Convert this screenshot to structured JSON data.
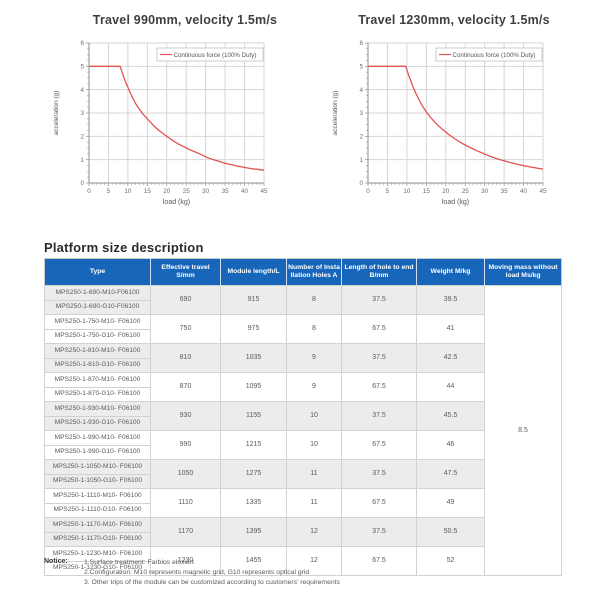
{
  "chart_data": [
    {
      "type": "line",
      "title": "Travel 990mm, velocity 1.5m/s",
      "xlabel": "load (kg)",
      "ylabel": "acceleration (g)",
      "xlim": [
        0,
        45
      ],
      "ylim": [
        0,
        6
      ],
      "xtick_step": 5,
      "ytick_step": 1,
      "x_minor_step": 1,
      "y_minor_step": 0.25,
      "grid": true,
      "legend": {
        "label": "Continuous force (100% Duty)",
        "position": "top-right"
      },
      "line_color": "#e25353",
      "series": [
        {
          "name": "Continuous force (100% Duty)",
          "points": [
            [
              0,
              5
            ],
            [
              8,
              5
            ],
            [
              8.5,
              4.75
            ],
            [
              9,
              4.5
            ],
            [
              9.5,
              4.3
            ],
            [
              10,
              4.1
            ],
            [
              11,
              3.72
            ],
            [
              12,
              3.4
            ],
            [
              13,
              3.15
            ],
            [
              14,
              2.93
            ],
            [
              15,
              2.75
            ],
            [
              16,
              2.57
            ],
            [
              17,
              2.4
            ],
            [
              18,
              2.25
            ],
            [
              19,
              2.12
            ],
            [
              20,
              2.0
            ],
            [
              21,
              1.88
            ],
            [
              22,
              1.77
            ],
            [
              23,
              1.67
            ],
            [
              24,
              1.58
            ],
            [
              25,
              1.5
            ],
            [
              26,
              1.42
            ],
            [
              27,
              1.35
            ],
            [
              28,
              1.28
            ],
            [
              29,
              1.21
            ],
            [
              30,
              1.12
            ],
            [
              31,
              1.06
            ],
            [
              32,
              1.0
            ],
            [
              33,
              0.95
            ],
            [
              34,
              0.9
            ],
            [
              35,
              0.85
            ],
            [
              36,
              0.81
            ],
            [
              37,
              0.77
            ],
            [
              38,
              0.73
            ],
            [
              39,
              0.7
            ],
            [
              40,
              0.67
            ],
            [
              41,
              0.64
            ],
            [
              42,
              0.61
            ],
            [
              43,
              0.59
            ],
            [
              44,
              0.57
            ],
            [
              45,
              0.55
            ]
          ]
        }
      ]
    },
    {
      "type": "line",
      "title": "Travel 1230mm, velocity 1.5m/s",
      "xlabel": "load (kg)",
      "ylabel": "acceleration (g)",
      "xlim": [
        0,
        45
      ],
      "ylim": [
        0,
        6
      ],
      "xtick_step": 5,
      "ytick_step": 1,
      "x_minor_step": 1,
      "y_minor_step": 0.25,
      "grid": true,
      "legend": {
        "label": "Continuous force (100% Duty)",
        "position": "top-right"
      },
      "line_color": "#e25353",
      "series": [
        {
          "name": "Continuous force (100% Duty)",
          "points": [
            [
              0,
              5
            ],
            [
              9.7,
              5
            ],
            [
              10,
              4.85
            ],
            [
              10.5,
              4.6
            ],
            [
              11,
              4.38
            ],
            [
              11.5,
              4.15
            ],
            [
              12,
              3.95
            ],
            [
              13,
              3.6
            ],
            [
              14,
              3.3
            ],
            [
              15,
              3.05
            ],
            [
              16,
              2.83
            ],
            [
              17,
              2.64
            ],
            [
              18,
              2.47
            ],
            [
              19,
              2.32
            ],
            [
              20,
              2.18
            ],
            [
              21,
              2.05
            ],
            [
              22,
              1.93
            ],
            [
              23,
              1.82
            ],
            [
              24,
              1.72
            ],
            [
              25,
              1.63
            ],
            [
              26,
              1.54
            ],
            [
              27,
              1.46
            ],
            [
              28,
              1.38
            ],
            [
              29,
              1.31
            ],
            [
              30,
              1.24
            ],
            [
              31,
              1.17
            ],
            [
              32,
              1.11
            ],
            [
              33,
              1.05
            ],
            [
              34,
              1.0
            ],
            [
              35,
              0.95
            ],
            [
              36,
              0.9
            ],
            [
              37,
              0.86
            ],
            [
              38,
              0.82
            ],
            [
              39,
              0.78
            ],
            [
              40,
              0.74
            ],
            [
              41,
              0.71
            ],
            [
              42,
              0.68
            ],
            [
              43,
              0.65
            ],
            [
              44,
              0.62
            ],
            [
              45,
              0.6
            ]
          ]
        }
      ]
    }
  ],
  "table": {
    "heading": "Platform size description",
    "columns": [
      "Type",
      "Effective travel\nS/mm",
      "Module length/L",
      "Number of Insta\nllation Holes A",
      "Length of hole to end\nB/mm",
      "Weight M/kg",
      "Moving mass without\nload Ms/kg"
    ],
    "groups": [
      {
        "types": [
          "MPS250-1-690-M10-F06100",
          "MPS250-1-690-G10-F06100"
        ],
        "travel": "690",
        "length": "915",
        "holes": "8",
        "hole_to_end": "37.5",
        "weight": "39.5"
      },
      {
        "types": [
          "MPS250-1-750-M10- F06100",
          "MPS250-1-750-G10- F06100"
        ],
        "travel": "750",
        "length": "975",
        "holes": "8",
        "hole_to_end": "67.5",
        "weight": "41"
      },
      {
        "types": [
          "MPS250-1-810-M10- F06100",
          "MPS250-1-810-G10- F06100"
        ],
        "travel": "810",
        "length": "1035",
        "holes": "9",
        "hole_to_end": "37.5",
        "weight": "42.5"
      },
      {
        "types": [
          "MPS250-1-870-M10- F06100",
          "MPS250-1-870-G10- F06100"
        ],
        "travel": "870",
        "length": "1095",
        "holes": "9",
        "hole_to_end": "67.5",
        "weight": "44"
      },
      {
        "types": [
          "MPS250-1-930-M10- F06100",
          "MPS250-1-930-G10- F06100"
        ],
        "travel": "930",
        "length": "1155",
        "holes": "10",
        "hole_to_end": "37.5",
        "weight": "45.5"
      },
      {
        "types": [
          "MPS250-1-990-M10- F06100",
          "MPS250-1-990-G10- F06100"
        ],
        "travel": "990",
        "length": "1215",
        "holes": "10",
        "hole_to_end": "67.5",
        "weight": "46"
      },
      {
        "types": [
          "MPS250-1-1050-M10- F06100",
          "MPS250-1-1050-G10- F06100"
        ],
        "travel": "1050",
        "length": "1275",
        "holes": "11",
        "hole_to_end": "37.5",
        "weight": "47.5"
      },
      {
        "types": [
          "MPS250-1-1110-M10- F06100",
          "MPS250-1-1110-G10- F06100"
        ],
        "travel": "1110",
        "length": "1335",
        "holes": "11",
        "hole_to_end": "67.5",
        "weight": "49"
      },
      {
        "types": [
          "MPS250-1-1170-M10- F06100",
          "MPS250-1-1170-G10- F06100"
        ],
        "travel": "1170",
        "length": "1395",
        "holes": "12",
        "hole_to_end": "37.5",
        "weight": "50.5"
      },
      {
        "types": [
          "MPS250-1-1230-M10- F06100",
          "MPS250-1-1230-G10- F06100"
        ],
        "travel": "1230",
        "length": "1455",
        "holes": "12",
        "hole_to_end": "67.5",
        "weight": "52"
      }
    ],
    "moving_mass_without_load": "8.5"
  },
  "notice": {
    "label": "Notice:",
    "items": [
      "1.Surface treatment: Farblos eloxiert",
      "2.Configuration: M10 represents magnetic grid, G10 represents optical grid",
      "3. Other trips of the module can be customized according to customers' requirements"
    ]
  },
  "colors": {
    "header_blue": "#1866ba",
    "shaded_row": "#ececec",
    "curve_red": "#e25353",
    "grid_gray": "#d6d6d6",
    "axis_gray": "#8f8f8f"
  }
}
